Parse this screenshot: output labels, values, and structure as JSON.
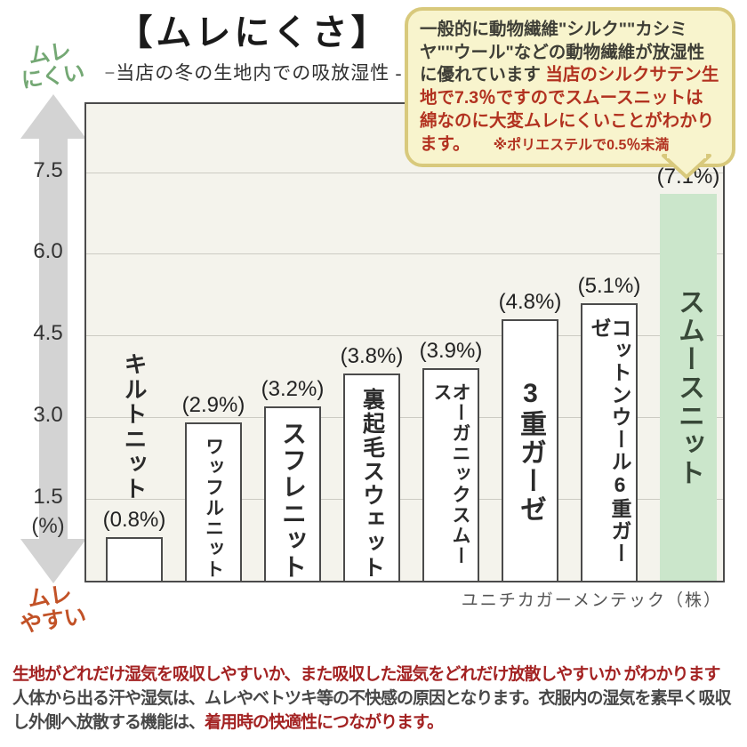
{
  "title": "【ムレにくさ】",
  "subtitle": "−当店の冬の生地内での吸放湿性 -",
  "bubble": {
    "text_dark": "一般的に動物繊維\"シルク\"\"カシミヤ\"\"ウール\"などの動物繊維が放湿性に優れています ",
    "text_red": "当店のシルクサテン生地で7.3％ですのでスムースニットは綿なのに大変ムレにくいことがわかります。",
    "note_red": "※ポリエステルで0.5％未満"
  },
  "axis": {
    "top_label_line1": "ムレ",
    "top_label_line2": "にくい",
    "bottom_label_line1": "ムレ",
    "bottom_label_line2": "やすい",
    "unit_label": "(%)"
  },
  "chart_data": {
    "type": "bar",
    "title": "【ムレにくさ】−当店の冬の生地内での吸放湿性 -",
    "categories": [
      "キルトニット",
      "ワッフルニット",
      "スフレニット",
      "裏起毛スウェット",
      "オーガニックスムース",
      "3重ガーゼ",
      "コットンウール6重ガーゼ",
      "スムースニット"
    ],
    "values": [
      0.8,
      2.9,
      3.2,
      3.8,
      3.9,
      4.8,
      5.1,
      7.1
    ],
    "value_labels": [
      "(0.8%)",
      "(2.9%)",
      "(3.2%)",
      "(3.8%)",
      "(3.9%)",
      "(4.8%)",
      "(5.1%)",
      "(7.1%)"
    ],
    "unit": "%",
    "yticks": [
      7.5,
      6.0,
      4.5,
      3.0,
      1.5
    ],
    "ylim": [
      0,
      8.75
    ],
    "grid": true,
    "legend": "none",
    "highlight_index": 7,
    "colors": {
      "bar_fill": "#ffffff",
      "bar_border": "#4b4b4b",
      "highlight_fill": "#cbe6cb",
      "plot_bg": "#f4f3ec",
      "gridline": "#cccbc3"
    }
  },
  "source": "ユニチカガーメンテック（株）",
  "footer": {
    "line1_red": "生地がどれだけ湿気を吸収しやすいか、また吸収した湿気をどれだけ放散しやすいか がわかります",
    "line2_dark": "人体から出る汗や湿気は、ムレやベトツキ等の不快感の原因となります。衣服内の湿気を素早く吸収し外側へ放散する機能は、",
    "line2_red": "着用時の快適性につながります。"
  }
}
